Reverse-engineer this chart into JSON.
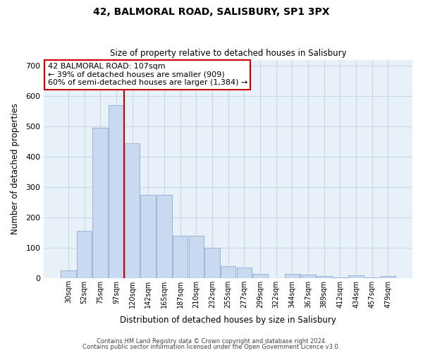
{
  "title": "42, BALMORAL ROAD, SALISBURY, SP1 3PX",
  "subtitle": "Size of property relative to detached houses in Salisbury",
  "xlabel": "Distribution of detached houses by size in Salisbury",
  "ylabel": "Number of detached properties",
  "bar_labels": [
    "30sqm",
    "52sqm",
    "75sqm",
    "97sqm",
    "120sqm",
    "142sqm",
    "165sqm",
    "187sqm",
    "210sqm",
    "232sqm",
    "255sqm",
    "277sqm",
    "299sqm",
    "322sqm",
    "344sqm",
    "367sqm",
    "389sqm",
    "412sqm",
    "434sqm",
    "457sqm",
    "479sqm"
  ],
  "bar_values": [
    25,
    155,
    495,
    570,
    445,
    275,
    275,
    140,
    140,
    100,
    38,
    35,
    14,
    0,
    13,
    10,
    6,
    2,
    8,
    2,
    6
  ],
  "bar_color": "#c9d9f0",
  "bar_edgecolor": "#a0b8d8",
  "vline_x_index": 3.5,
  "vline_color": "#cc0000",
  "annotation_title": "42 BALMORAL ROAD: 107sqm",
  "annotation_line1": "← 39% of detached houses are smaller (909)",
  "annotation_line2": "60% of semi-detached houses are larger (1,384) →",
  "annotation_box_color": "#ffffff",
  "annotation_box_edgecolor": "#cc0000",
  "ylim": [
    0,
    720
  ],
  "yticks": [
    0,
    100,
    200,
    300,
    400,
    500,
    600,
    700
  ],
  "grid_color": "#c8d8e8",
  "bg_color": "#e8f0f8",
  "footer1": "Contains HM Land Registry data © Crown copyright and database right 2024.",
  "footer2": "Contains public sector information licensed under the Open Government Licence v3.0."
}
